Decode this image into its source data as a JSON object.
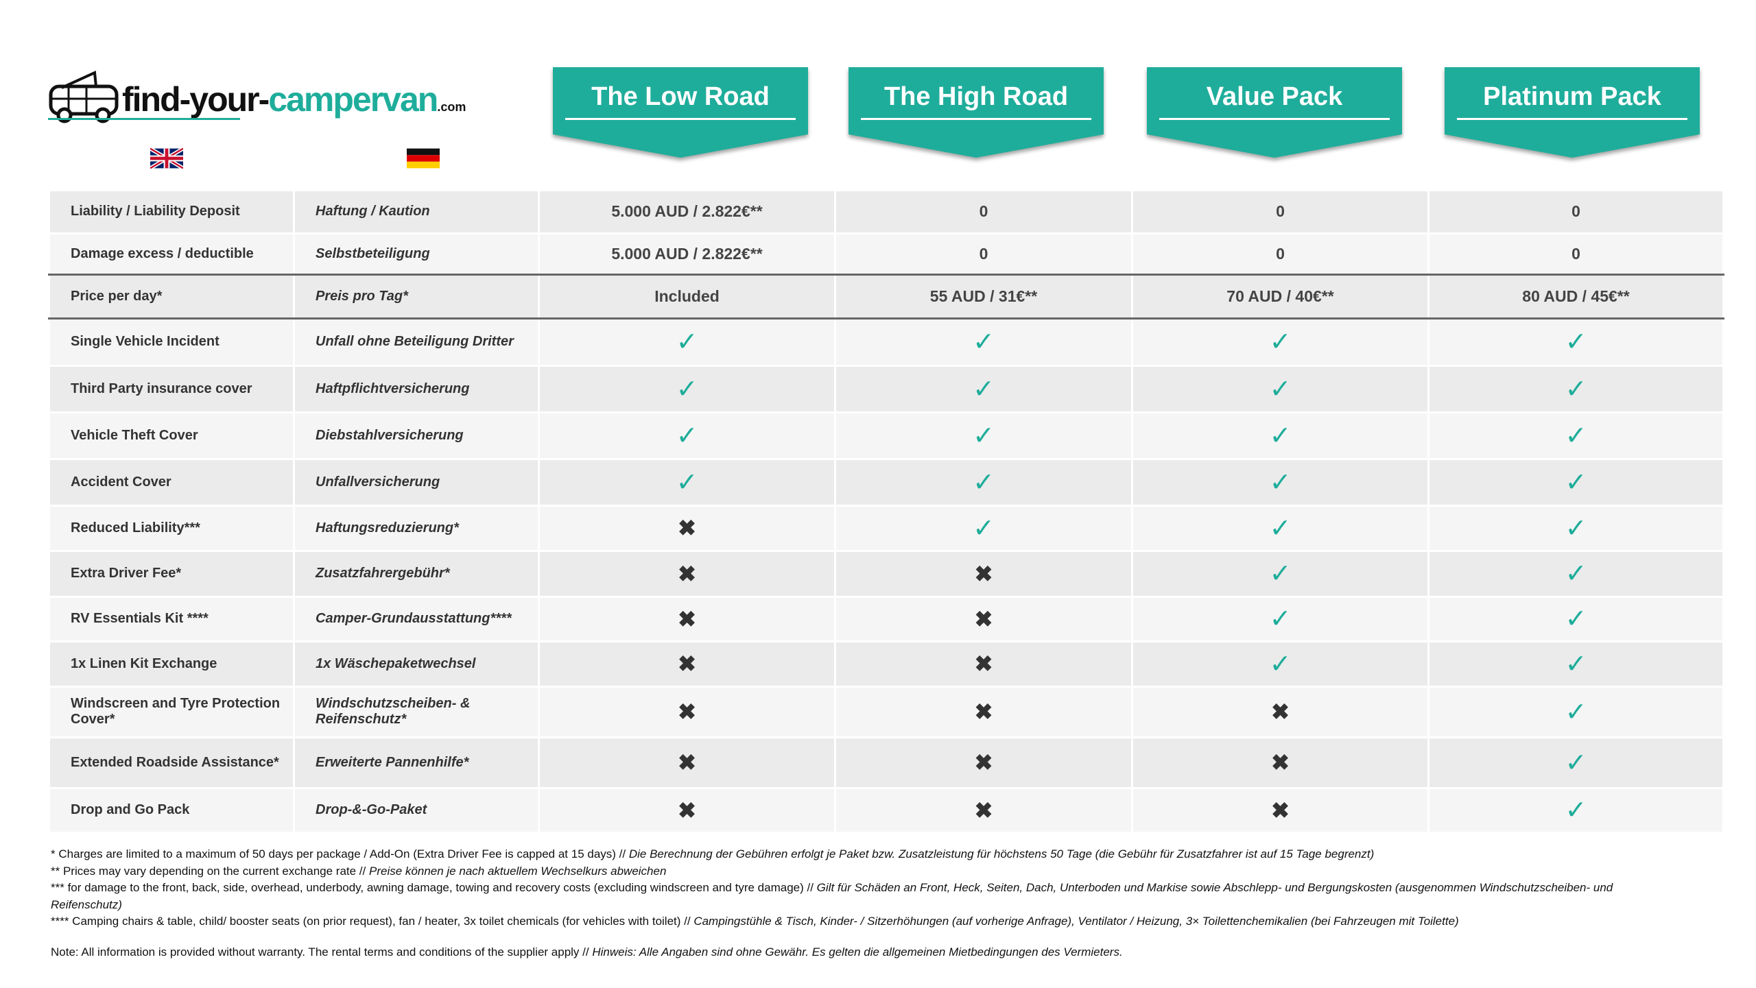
{
  "logo": {
    "text_dark": "find-your-",
    "text_accent": "campervan",
    "suffix": ".com",
    "icon": "campervan-icon"
  },
  "languages": [
    {
      "name": "English",
      "icon": "uk-flag-icon"
    },
    {
      "name": "German",
      "icon": "germany-flag-icon"
    }
  ],
  "colors": {
    "accent": "#1fad9b",
    "row_dark": "#ebebeb",
    "row_light": "#f5f5f5",
    "cross": "#333333"
  },
  "packages": [
    "The Low Road",
    "The High Road",
    "Value Pack",
    "Platinum Pack"
  ],
  "rows": [
    {
      "en": "Liability / Liability Deposit",
      "de": "Haftung / Kaution",
      "values": [
        "5.000 AUD / 2.822€**",
        "0",
        "0",
        "0"
      ]
    },
    {
      "en": "Damage excess / deductible",
      "de": "Selbstbeteiligung",
      "values": [
        "5.000 AUD / 2.822€**",
        "0",
        "0",
        "0"
      ]
    },
    {
      "en": "Price per day*",
      "de": "Preis pro Tag*",
      "values": [
        "Included",
        "55 AUD / 31€**",
        "70 AUD / 40€**",
        "80 AUD / 45€**"
      ]
    },
    {
      "en": "Single Vehicle Incident",
      "de": "Unfall ohne Beteiligung Dritter",
      "values": [
        true,
        true,
        true,
        true
      ]
    },
    {
      "en": "Third Party insurance cover",
      "de": "Haftpflichtversicherung",
      "values": [
        true,
        true,
        true,
        true
      ]
    },
    {
      "en": "Vehicle Theft Cover",
      "de": "Diebstahlversicherung",
      "values": [
        true,
        true,
        true,
        true
      ]
    },
    {
      "en": "Accident Cover",
      "de": "Unfallversicherung",
      "values": [
        true,
        true,
        true,
        true
      ]
    },
    {
      "en": "Reduced Liability***",
      "de": "Haftungsreduzierung*",
      "values": [
        false,
        true,
        true,
        true
      ]
    },
    {
      "en": "Extra Driver Fee*",
      "de": "Zusatzfahrergebühr*",
      "values": [
        false,
        false,
        true,
        true
      ]
    },
    {
      "en": "RV Essentials Kit ****",
      "de": "Camper-Grundausstattung****",
      "values": [
        false,
        false,
        true,
        true
      ]
    },
    {
      "en": "1x Linen Kit Exchange",
      "de": "1x Wäschepaketwechsel",
      "values": [
        false,
        false,
        true,
        true
      ]
    },
    {
      "en": "Windscreen and Tyre Protection Cover*",
      "de": "Windschutzscheiben- & Reifenschutz*",
      "values": [
        false,
        false,
        false,
        true
      ]
    },
    {
      "en": "Extended Roadside Assistance*",
      "de": "Erweiterte Pannenhilfe*",
      "values": [
        false,
        false,
        false,
        true
      ]
    },
    {
      "en": "Drop and Go Pack",
      "de": "Drop-&-Go-Paket",
      "values": [
        false,
        false,
        false,
        true
      ]
    }
  ],
  "symbols": {
    "yes": "✓",
    "no": "✖"
  },
  "footnotes": [
    {
      "en": "* Charges are limited to a maximum of 50 days per package / Add-On (Extra Driver Fee is capped at 15 days)  //",
      "de": "Die Berechnung der Gebühren erfolgt je Paket bzw. Zusatzleistung für höchstens 50 Tage (die Gebühr für Zusatzfahrer ist auf 15 Tage begrenzt)"
    },
    {
      "en": "** Prices may vary depending on the current exchange rate  //",
      "de": "Preise können je nach aktuellem Wechselkurs abweichen"
    },
    {
      "en": "*** for damage to the front, back, side, overhead, underbody, awning damage, towing and recovery costs (excluding windscreen and tyre damage)  //",
      "de": "Gilt für Schäden an Front, Heck, Seiten, Dach, Unterboden und Markise sowie Abschlepp- und Bergungskosten (ausgenommen Windschutzscheiben- und Reifenschutz)"
    },
    {
      "en": "**** Camping chairs & table, child/ booster seats (on prior request), fan / heater, 3x toilet chemicals (for vehicles with toilet)  //",
      "de": "Campingstühle & Tisch, Kinder- / Sitzerhöhungen (auf vorherige Anfrage), Ventilator / Heizung, 3× Toilettenchemikalien (bei Fahrzeugen mit Toilette)"
    }
  ],
  "note": {
    "en": "Note: All information is provided without warranty. The rental terms and conditions of the supplier apply //",
    "de": "Hinweis: Alle Angaben sind ohne Gewähr. Es gelten die allgemeinen Mietbedingungen des Vermieters."
  }
}
